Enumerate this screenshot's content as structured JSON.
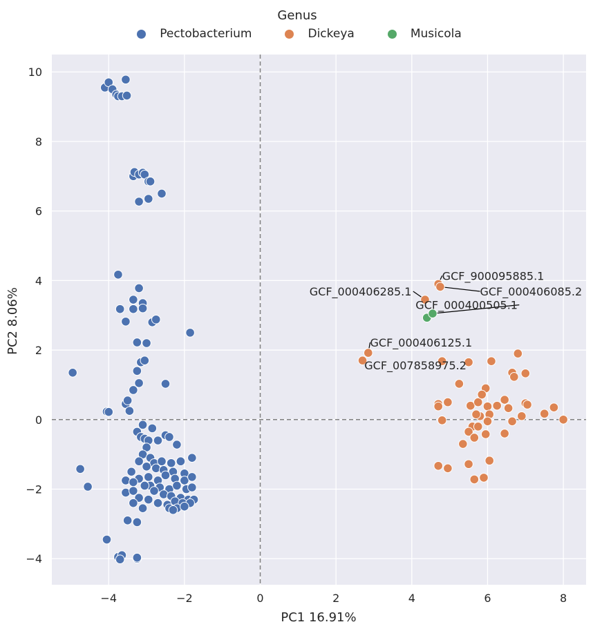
{
  "chart_data": {
    "type": "scatter",
    "title": "",
    "xlabel": "PC1 16.91%",
    "ylabel": "PC2 8.06%",
    "xlim": [
      -5.5,
      8.6
    ],
    "ylim": [
      -4.75,
      10.5
    ],
    "xticks": [
      -4,
      -2,
      0,
      2,
      4,
      6,
      8
    ],
    "yticks": [
      -4,
      -2,
      0,
      2,
      4,
      6,
      8,
      10
    ],
    "xtick_labels": [
      "−4",
      "−2",
      "0",
      "2",
      "4",
      "6",
      "8"
    ],
    "ytick_labels": [
      "−4",
      "−2",
      "0",
      "2",
      "4",
      "6",
      "8",
      "10"
    ],
    "grid": true,
    "reference_lines": {
      "x": 0,
      "y": 0,
      "style": "dashed"
    },
    "legend": {
      "title": "Genus",
      "placement": "top-center"
    },
    "series": [
      {
        "name": "Pectobacterium",
        "color": "#4c72b0",
        "points": [
          [
            -4.1,
            9.55
          ],
          [
            -4.0,
            9.7
          ],
          [
            -3.9,
            9.5
          ],
          [
            -3.8,
            9.35
          ],
          [
            -3.75,
            9.3
          ],
          [
            -3.65,
            9.3
          ],
          [
            -3.55,
            9.78
          ],
          [
            -3.52,
            9.32
          ],
          [
            -3.35,
            7.0
          ],
          [
            -3.32,
            7.12
          ],
          [
            -3.2,
            7.05
          ],
          [
            -3.1,
            7.1
          ],
          [
            -3.05,
            7.05
          ],
          [
            -2.95,
            6.85
          ],
          [
            -2.9,
            6.85
          ],
          [
            -2.95,
            6.35
          ],
          [
            -3.2,
            6.27
          ],
          [
            -2.6,
            6.5
          ],
          [
            -3.75,
            4.17
          ],
          [
            -3.2,
            3.78
          ],
          [
            -3.35,
            3.45
          ],
          [
            -3.1,
            3.35
          ],
          [
            -3.7,
            3.18
          ],
          [
            -3.35,
            3.18
          ],
          [
            -3.1,
            3.2
          ],
          [
            -3.55,
            2.82
          ],
          [
            -2.85,
            2.8
          ],
          [
            -2.75,
            2.88
          ],
          [
            -1.85,
            2.5
          ],
          [
            -3.25,
            2.22
          ],
          [
            -3.0,
            2.2
          ],
          [
            -3.15,
            1.65
          ],
          [
            -3.05,
            1.7
          ],
          [
            -3.25,
            1.4
          ],
          [
            -3.2,
            1.05
          ],
          [
            -2.5,
            1.03
          ],
          [
            -4.95,
            1.35
          ],
          [
            -3.35,
            0.85
          ],
          [
            -3.55,
            0.45
          ],
          [
            -3.5,
            0.55
          ],
          [
            -3.45,
            0.25
          ],
          [
            -4.05,
            0.23
          ],
          [
            -4.0,
            0.22
          ],
          [
            -3.1,
            -0.15
          ],
          [
            -2.85,
            -0.25
          ],
          [
            -3.25,
            -0.35
          ],
          [
            -3.15,
            -0.5
          ],
          [
            -3.05,
            -0.55
          ],
          [
            -2.95,
            -0.6
          ],
          [
            -2.7,
            -0.6
          ],
          [
            -2.5,
            -0.45
          ],
          [
            -2.4,
            -0.5
          ],
          [
            -2.2,
            -0.72
          ],
          [
            -3.0,
            -0.8
          ],
          [
            -3.1,
            -1.0
          ],
          [
            -2.9,
            -1.1
          ],
          [
            -3.2,
            -1.2
          ],
          [
            -2.8,
            -1.25
          ],
          [
            -2.6,
            -1.2
          ],
          [
            -2.35,
            -1.25
          ],
          [
            -2.1,
            -1.2
          ],
          [
            -1.8,
            -1.1
          ],
          [
            -3.0,
            -1.35
          ],
          [
            -2.75,
            -1.4
          ],
          [
            -2.55,
            -1.45
          ],
          [
            -2.3,
            -1.5
          ],
          [
            -2.0,
            -1.55
          ],
          [
            -3.4,
            -1.5
          ],
          [
            -3.2,
            -1.7
          ],
          [
            -2.95,
            -1.65
          ],
          [
            -2.7,
            -1.75
          ],
          [
            -2.5,
            -1.6
          ],
          [
            -2.25,
            -1.7
          ],
          [
            -2.0,
            -1.75
          ],
          [
            -1.8,
            -1.65
          ],
          [
            -3.55,
            -1.75
          ],
          [
            -3.35,
            -1.8
          ],
          [
            -2.9,
            -1.9
          ],
          [
            -2.65,
            -1.95
          ],
          [
            -2.4,
            -2.0
          ],
          [
            -2.2,
            -1.9
          ],
          [
            -1.95,
            -2.0
          ],
          [
            -1.8,
            -1.95
          ],
          [
            -3.05,
            -1.9
          ],
          [
            -2.8,
            -2.05
          ],
          [
            -2.55,
            -2.15
          ],
          [
            -2.35,
            -2.2
          ],
          [
            -2.1,
            -2.25
          ],
          [
            -1.9,
            -2.3
          ],
          [
            -1.75,
            -2.3
          ],
          [
            -3.55,
            -2.1
          ],
          [
            -3.35,
            -2.05
          ],
          [
            -3.2,
            -2.25
          ],
          [
            -2.95,
            -2.3
          ],
          [
            -2.7,
            -2.4
          ],
          [
            -2.45,
            -2.45
          ],
          [
            -2.25,
            -2.35
          ],
          [
            -2.05,
            -2.4
          ],
          [
            -1.85,
            -2.4
          ],
          [
            -3.35,
            -2.4
          ],
          [
            -3.1,
            -2.55
          ],
          [
            -2.4,
            -2.55
          ],
          [
            -2.2,
            -2.55
          ],
          [
            -2.0,
            -2.5
          ],
          [
            -2.3,
            -2.6
          ],
          [
            -3.5,
            -2.9
          ],
          [
            -3.25,
            -2.95
          ],
          [
            -4.75,
            -1.42
          ],
          [
            -4.55,
            -1.93
          ],
          [
            -4.05,
            -3.45
          ],
          [
            -3.75,
            -3.95
          ],
          [
            -3.65,
            -3.9
          ],
          [
            -3.7,
            -4.02
          ],
          [
            -3.25,
            -4.0
          ],
          [
            -3.25,
            -3.97
          ]
        ]
      },
      {
        "name": "Dickeya",
        "color": "#dd8452",
        "points": [
          [
            4.7,
            3.9
          ],
          [
            4.75,
            3.82
          ],
          [
            4.35,
            3.45
          ],
          [
            2.85,
            1.92
          ],
          [
            2.7,
            1.7
          ],
          [
            4.8,
            1.68
          ],
          [
            5.5,
            1.65
          ],
          [
            6.1,
            1.68
          ],
          [
            6.8,
            1.9
          ],
          [
            5.25,
            1.03
          ],
          [
            5.95,
            0.9
          ],
          [
            6.65,
            1.35
          ],
          [
            6.7,
            1.23
          ],
          [
            7.0,
            1.33
          ],
          [
            4.7,
            0.45
          ],
          [
            4.7,
            0.38
          ],
          [
            4.95,
            0.5
          ],
          [
            5.55,
            0.4
          ],
          [
            5.75,
            0.5
          ],
          [
            5.85,
            0.72
          ],
          [
            6.0,
            0.38
          ],
          [
            6.25,
            0.4
          ],
          [
            6.45,
            0.57
          ],
          [
            6.55,
            0.33
          ],
          [
            7.0,
            0.47
          ],
          [
            7.05,
            0.43
          ],
          [
            7.75,
            0.35
          ],
          [
            7.5,
            0.17
          ],
          [
            8.0,
            0.0
          ],
          [
            6.9,
            0.1
          ],
          [
            6.65,
            -0.05
          ],
          [
            6.05,
            0.15
          ],
          [
            5.8,
            0.1
          ],
          [
            5.7,
            0.15
          ],
          [
            4.8,
            -0.02
          ],
          [
            5.6,
            -0.2
          ],
          [
            6.0,
            -0.05
          ],
          [
            5.75,
            -0.2
          ],
          [
            5.5,
            -0.35
          ],
          [
            5.65,
            -0.52
          ],
          [
            5.95,
            -0.42
          ],
          [
            5.35,
            -0.7
          ],
          [
            6.45,
            -0.4
          ],
          [
            6.05,
            -1.18
          ],
          [
            5.5,
            -1.28
          ],
          [
            4.7,
            -1.33
          ],
          [
            4.95,
            -1.4
          ],
          [
            5.65,
            -1.72
          ],
          [
            5.9,
            -1.67
          ]
        ]
      },
      {
        "name": "Musicola",
        "color": "#55a868",
        "points": [
          [
            4.4,
            2.93
          ],
          [
            4.55,
            3.05
          ]
        ]
      }
    ],
    "annotations": [
      {
        "text": "GCF_900095885.1",
        "point": [
          4.7,
          3.9
        ],
        "text_pos": [
          4.8,
          4.02
        ],
        "ha": "left"
      },
      {
        "text": "GCF_000406085.2",
        "point": [
          4.75,
          3.82
        ],
        "text_pos": [
          5.8,
          3.57
        ],
        "ha": "left"
      },
      {
        "text": "GCF_000406285.1",
        "point": [
          4.35,
          3.45
        ],
        "text_pos": [
          1.3,
          3.57
        ],
        "ha": "left"
      },
      {
        "text": "GCF_000400505.1",
        "point": [
          4.55,
          3.05
        ],
        "text_pos": [
          4.1,
          3.18
        ],
        "ha": "left"
      },
      {
        "text": "GCF_000406125.1",
        "point": [
          2.85,
          1.92
        ],
        "text_pos": [
          2.9,
          2.1
        ],
        "ha": "left"
      },
      {
        "text": "GCF_007858975.2",
        "point": [
          2.7,
          1.7
        ],
        "text_pos": [
          2.75,
          1.45
        ],
        "ha": "left"
      }
    ]
  }
}
